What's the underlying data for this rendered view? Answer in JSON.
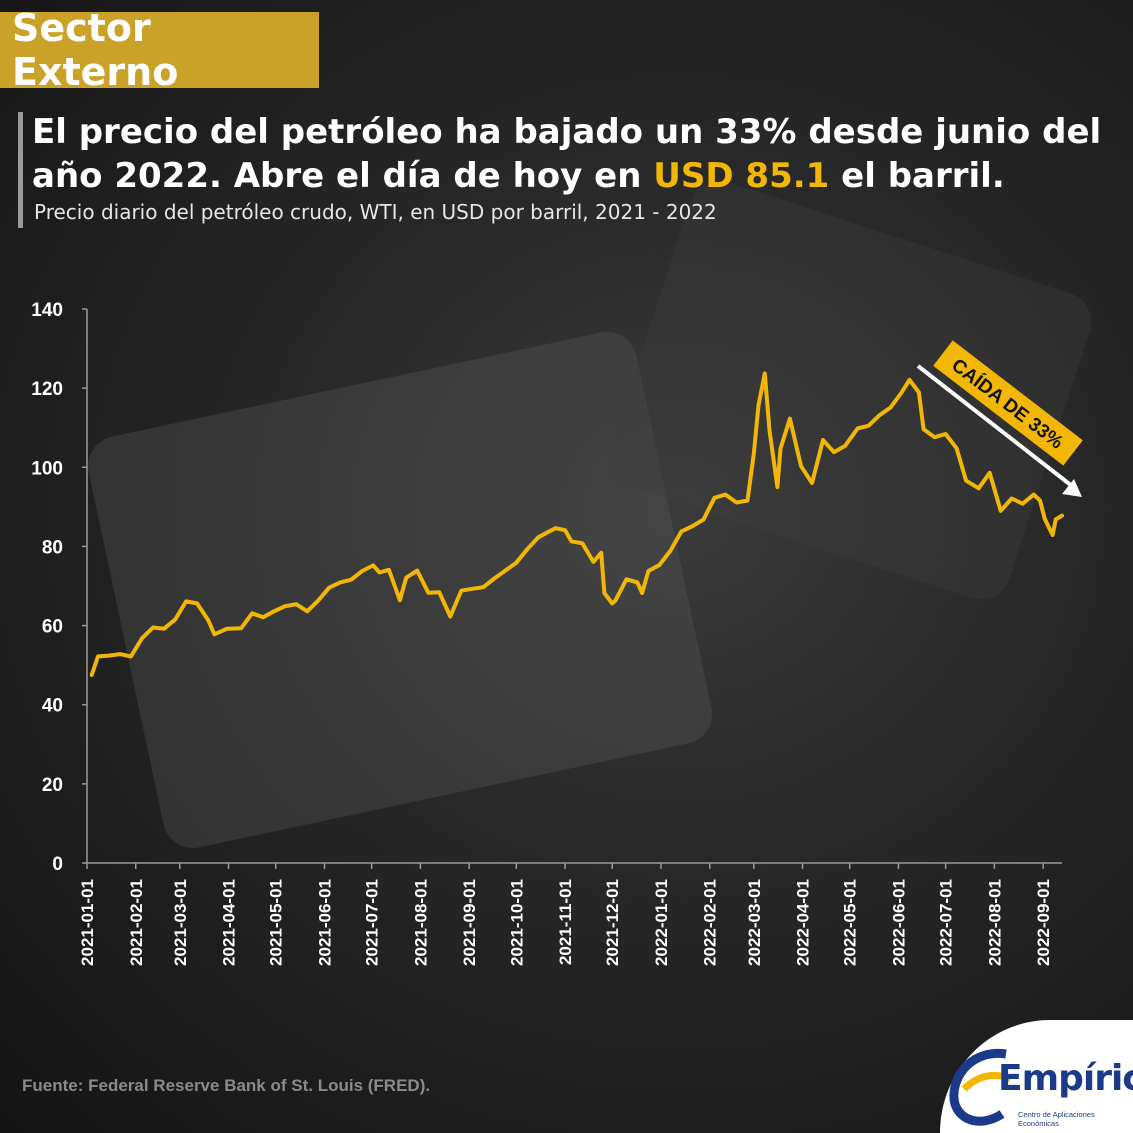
{
  "section_tag": "Sector Externo",
  "headline": {
    "part1": "El precio del petróleo ha bajado un 33% desde junio del año 2022. Abre el día de hoy en ",
    "highlight": "USD 85.1",
    "part2": " el barril."
  },
  "subtitle": "Precio diario del petróleo crudo, WTI, en USD por barril, 2021 - 2022",
  "source": "Fuente: Federal Reserve Bank of St. Louis (FRED).",
  "logo": {
    "name": "Empírica",
    "tagline": "Centro de Aplicaciones Económicas"
  },
  "colors": {
    "line": "#f2b705",
    "accent": "#f2b705",
    "background": "#1e1e1e"
  },
  "chart_data": {
    "type": "line",
    "ylim": [
      0,
      140
    ],
    "yticks": [
      0,
      20,
      40,
      60,
      80,
      100,
      120,
      140
    ],
    "xlim": [
      "2021-01-01",
      "2022-09-13"
    ],
    "xticks": [
      "2021-01-01",
      "2021-02-01",
      "2021-03-01",
      "2021-04-01",
      "2021-05-01",
      "2021-06-01",
      "2021-07-01",
      "2021-08-01",
      "2021-09-01",
      "2021-10-01",
      "2021-11-01",
      "2021-12-01",
      "2022-01-01",
      "2022-02-01",
      "2022-03-01",
      "2022-04-01",
      "2022-05-01",
      "2022-06-01",
      "2022-07-01",
      "2022-08-01",
      "2022-09-01"
    ],
    "annotation": "CAÍDA DE 33%",
    "series": [
      {
        "x": [
          "2021-01-04",
          "2021-01-08",
          "2021-01-15",
          "2021-01-22",
          "2021-01-29",
          "2021-02-05",
          "2021-02-12",
          "2021-02-19",
          "2021-02-26",
          "2021-03-05",
          "2021-03-12",
          "2021-03-19",
          "2021-03-23",
          "2021-03-31",
          "2021-04-09",
          "2021-04-16",
          "2021-04-23",
          "2021-04-30",
          "2021-05-07",
          "2021-05-14",
          "2021-05-21",
          "2021-05-28",
          "2021-06-04",
          "2021-06-11",
          "2021-06-18",
          "2021-06-25",
          "2021-07-02",
          "2021-07-06",
          "2021-07-12",
          "2021-07-19",
          "2021-07-23",
          "2021-07-30",
          "2021-08-06",
          "2021-08-13",
          "2021-08-20",
          "2021-08-27",
          "2021-09-03",
          "2021-09-10",
          "2021-09-17",
          "2021-09-24",
          "2021-10-01",
          "2021-10-08",
          "2021-10-15",
          "2021-10-22",
          "2021-10-26",
          "2021-11-01",
          "2021-11-05",
          "2021-11-12",
          "2021-11-19",
          "2021-11-24",
          "2021-11-26",
          "2021-12-01",
          "2021-12-03",
          "2021-12-10",
          "2021-12-17",
          "2021-12-20",
          "2021-12-24",
          "2021-12-31",
          "2022-01-07",
          "2022-01-14",
          "2022-01-21",
          "2022-01-28",
          "2022-02-04",
          "2022-02-11",
          "2022-02-18",
          "2022-02-25",
          "2022-03-01",
          "2022-03-04",
          "2022-03-08",
          "2022-03-11",
          "2022-03-16",
          "2022-03-18",
          "2022-03-24",
          "2022-03-31",
          "2022-04-07",
          "2022-04-14",
          "2022-04-21",
          "2022-04-28",
          "2022-05-06",
          "2022-05-13",
          "2022-05-20",
          "2022-05-27",
          "2022-06-03",
          "2022-06-08",
          "2022-06-14",
          "2022-06-17",
          "2022-06-24",
          "2022-07-01",
          "2022-07-08",
          "2022-07-14",
          "2022-07-22",
          "2022-07-29",
          "2022-08-05",
          "2022-08-12",
          "2022-08-19",
          "2022-08-26",
          "2022-08-30",
          "2022-09-02",
          "2022-09-07",
          "2022-09-09",
          "2022-09-13"
        ],
        "values": [
          47.5,
          52.2,
          52.4,
          52.8,
          52.2,
          56.8,
          59.5,
          59.2,
          61.5,
          66.1,
          65.6,
          61.4,
          57.8,
          59.2,
          59.3,
          63.1,
          62.1,
          63.6,
          64.9,
          65.4,
          63.6,
          66.3,
          69.6,
          70.9,
          71.6,
          73.8,
          75.2,
          73.4,
          74.1,
          66.4,
          72.1,
          73.9,
          68.3,
          68.4,
          62.3,
          68.8,
          69.3,
          69.7,
          71.9,
          73.9,
          75.9,
          79.3,
          82.3,
          83.8,
          84.6,
          84.1,
          81.3,
          80.8,
          76.1,
          78.4,
          68.2,
          65.6,
          66.3,
          71.7,
          70.9,
          68.2,
          73.8,
          75.3,
          78.9,
          83.8,
          85.1,
          86.8,
          92.3,
          93.1,
          91.1,
          91.6,
          103.4,
          115.7,
          123.7,
          109.3,
          95.0,
          104.7,
          112.3,
          100.3,
          96.0,
          106.9,
          103.8,
          105.4,
          109.8,
          110.5,
          113.2,
          115.1,
          118.9,
          122.1,
          118.9,
          109.6,
          107.6,
          108.4,
          104.8,
          96.6,
          94.7,
          98.6,
          89.0,
          92.1,
          90.8,
          93.1,
          91.6,
          87.0,
          82.9,
          86.8,
          87.8
        ]
      }
    ]
  }
}
